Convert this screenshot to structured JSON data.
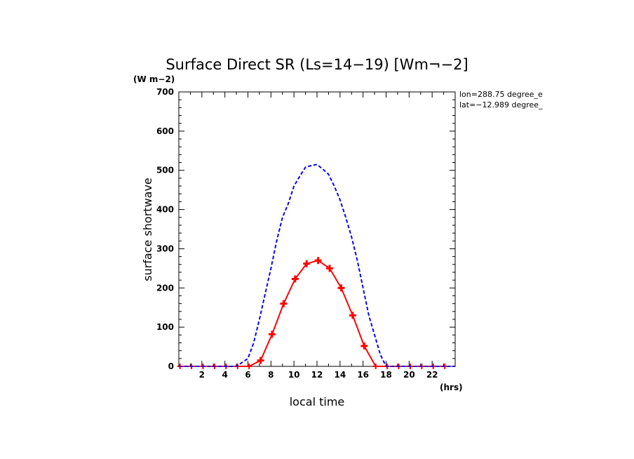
{
  "chart_data": {
    "type": "line",
    "title": "Surface Direct SR (Ls=14−19) [Wm¬−2]",
    "y_units": "(W m−2)",
    "x_units": "(hrs)",
    "xlabel": "local time",
    "ylabel": "surface shortwave",
    "xlim": [
      0,
      24
    ],
    "ylim": [
      0,
      700
    ],
    "x_tick_labels": [
      "2",
      "4",
      "6",
      "8",
      "10",
      "12",
      "14",
      "16",
      "18",
      "20",
      "22"
    ],
    "y_tick_labels": [
      "0",
      "100",
      "200",
      "300",
      "400",
      "500",
      "600",
      "700"
    ],
    "annotations": [
      "lon=288.75 degree_e",
      "lat=−12.989 degree_"
    ],
    "series": [
      {
        "color": "#ff0000",
        "style": "solid-with-plus-markers",
        "x": [
          0.1,
          1.1,
          2.1,
          3.1,
          4.1,
          5.1,
          6.1,
          7.1,
          8.1,
          9.1,
          10.1,
          11.1,
          12.1,
          13.1,
          14.1,
          15.1,
          16.1,
          17.1,
          18.1,
          19.1,
          20.1,
          21.1,
          22.1,
          23.1
        ],
        "values": [
          0,
          0,
          0,
          0,
          0,
          0,
          0,
          15,
          82,
          160,
          223,
          262,
          270,
          250,
          200,
          130,
          52,
          0,
          0,
          0,
          0,
          0,
          0,
          0
        ]
      },
      {
        "color": "#0000ff",
        "style": "dashed",
        "x": [
          0,
          1,
          2,
          3,
          4,
          5,
          5.5,
          6,
          6.5,
          7,
          7.5,
          8,
          8.5,
          9,
          9.5,
          10,
          10.5,
          11,
          11.5,
          12,
          12.5,
          13,
          13.5,
          14,
          14.5,
          15,
          15.5,
          16,
          16.5,
          17,
          17.5,
          18,
          18.5,
          19,
          20,
          21,
          22,
          23,
          24
        ],
        "values": [
          0,
          0,
          0,
          0,
          0,
          0,
          10,
          20,
          60,
          120,
          185,
          250,
          320,
          380,
          415,
          460,
          485,
          508,
          512,
          515,
          503,
          490,
          460,
          425,
          380,
          330,
          270,
          200,
          130,
          80,
          30,
          0,
          0,
          0,
          0,
          0,
          0,
          0,
          0
        ]
      }
    ]
  }
}
